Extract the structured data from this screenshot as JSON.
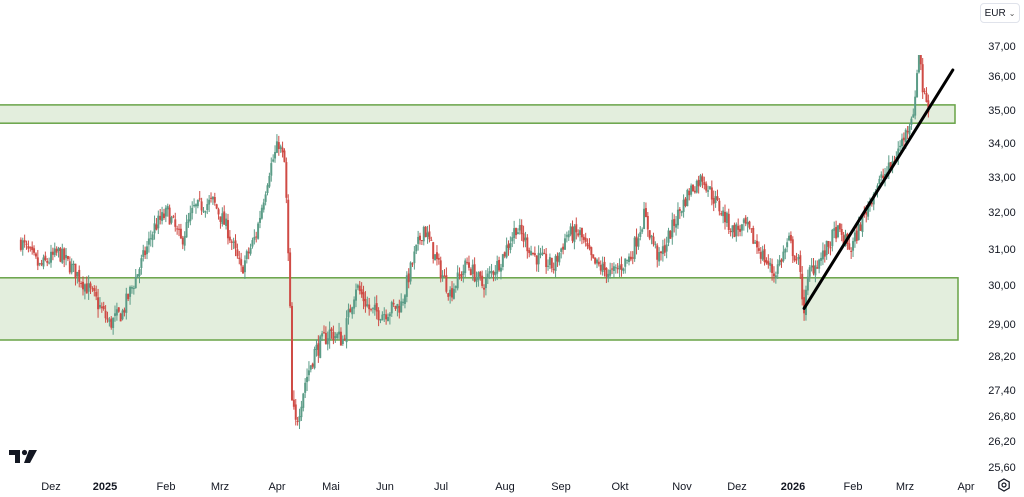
{
  "chart_data": {
    "type": "candlestick",
    "currency": "EUR",
    "y_ticks": [
      "37,00",
      "36,00",
      "35,00",
      "34,00",
      "33,00",
      "32,00",
      "31,00",
      "30,00",
      "29,00",
      "28,20",
      "27,40",
      "26,80",
      "26,20",
      "25,60"
    ],
    "x_ticks": [
      {
        "label": "Dez",
        "bold": false
      },
      {
        "label": "2025",
        "bold": true
      },
      {
        "label": "Feb",
        "bold": false
      },
      {
        "label": "Mrz",
        "bold": false
      },
      {
        "label": "Apr",
        "bold": false
      },
      {
        "label": "Mai",
        "bold": false
      },
      {
        "label": "Jun",
        "bold": false
      },
      {
        "label": "Jul",
        "bold": false
      },
      {
        "label": "Aug",
        "bold": false
      },
      {
        "label": "Sep",
        "bold": false
      },
      {
        "label": "Okt",
        "bold": false
      },
      {
        "label": "Nov",
        "bold": false
      },
      {
        "label": "Dez",
        "bold": false
      },
      {
        "label": "2026",
        "bold": true
      },
      {
        "label": "Feb",
        "bold": false
      },
      {
        "label": "Mrz",
        "bold": false
      },
      {
        "label": "Apr",
        "bold": false
      }
    ],
    "price_path": [
      [
        "2024-11-15",
        31.2
      ],
      [
        "2024-11-25",
        30.5
      ],
      [
        "2024-12-05",
        30.9
      ],
      [
        "2024-12-15",
        30.3
      ],
      [
        "2024-12-25",
        29.6
      ],
      [
        "2025-01-01",
        29.0
      ],
      [
        "2025-01-08",
        29.3
      ],
      [
        "2025-01-15",
        30.2
      ],
      [
        "2025-01-25",
        31.6
      ],
      [
        "2025-02-01",
        32.0
      ],
      [
        "2025-02-08",
        31.2
      ],
      [
        "2025-02-15",
        32.1
      ],
      [
        "2025-02-25",
        32.3
      ],
      [
        "2025-03-05",
        31.5
      ],
      [
        "2025-03-12",
        30.4
      ],
      [
        "2025-03-20",
        31.4
      ],
      [
        "2025-03-27",
        33.2
      ],
      [
        "2025-04-01",
        34.0
      ],
      [
        "2025-04-04",
        33.4
      ],
      [
        "2025-04-05",
        32.3
      ],
      [
        "2025-04-07",
        29.3
      ],
      [
        "2025-04-08",
        27.1
      ],
      [
        "2025-04-10",
        26.6
      ],
      [
        "2025-04-15",
        27.6
      ],
      [
        "2025-04-20",
        28.3
      ],
      [
        "2025-04-28",
        28.8
      ],
      [
        "2025-05-05",
        28.6
      ],
      [
        "2025-05-12",
        30.0
      ],
      [
        "2025-05-20",
        29.3
      ],
      [
        "2025-05-27",
        29.3
      ],
      [
        "2025-06-05",
        29.5
      ],
      [
        "2025-06-12",
        30.8
      ],
      [
        "2025-06-17",
        31.6
      ],
      [
        "2025-06-25",
        30.5
      ],
      [
        "2025-07-01",
        29.8
      ],
      [
        "2025-07-10",
        30.6
      ],
      [
        "2025-07-18",
        30.0
      ],
      [
        "2025-07-28",
        30.7
      ],
      [
        "2025-08-05",
        31.6
      ],
      [
        "2025-08-15",
        30.8
      ],
      [
        "2025-08-25",
        30.5
      ],
      [
        "2025-09-01",
        31.4
      ],
      [
        "2025-09-08",
        31.4
      ],
      [
        "2025-09-15",
        30.6
      ],
      [
        "2025-09-25",
        30.3
      ],
      [
        "2025-10-05",
        30.8
      ],
      [
        "2025-10-12",
        31.9
      ],
      [
        "2025-10-20",
        30.7
      ],
      [
        "2025-10-28",
        31.7
      ],
      [
        "2025-11-05",
        32.6
      ],
      [
        "2025-11-12",
        33.0
      ],
      [
        "2025-11-20",
        32.2
      ],
      [
        "2025-11-28",
        31.5
      ],
      [
        "2025-12-05",
        31.6
      ],
      [
        "2025-12-12",
        31.0
      ],
      [
        "2025-12-20",
        30.3
      ],
      [
        "2025-12-28",
        31.2
      ],
      [
        "2026-01-02",
        30.6
      ],
      [
        "2026-01-05",
        29.4
      ],
      [
        "2026-01-08",
        30.4
      ],
      [
        "2026-01-15",
        30.8
      ],
      [
        "2026-01-22",
        31.5
      ],
      [
        "2026-01-30",
        31.0
      ],
      [
        "2026-02-05",
        31.8
      ],
      [
        "2026-02-12",
        32.7
      ],
      [
        "2026-02-20",
        33.3
      ],
      [
        "2026-02-28",
        34.3
      ],
      [
        "2026-03-05",
        35.2
      ],
      [
        "2026-03-07",
        37.3
      ],
      [
        "2026-03-09",
        35.6
      ],
      [
        "2026-03-12",
        35.1
      ]
    ],
    "support_zone": {
      "low": 28.6,
      "high": 30.2
    },
    "resistance_zone": {
      "low": 34.6,
      "high": 35.15
    },
    "trendline": {
      "start": [
        "2026-01-05",
        29.4
      ],
      "end": [
        "2026-03-25",
        36.2
      ]
    },
    "y_scale": "log",
    "x_range": [
      "2024-11-15",
      "2026-04-08"
    ],
    "y_range": [
      25.6,
      37.0
    ],
    "up_color": "#5b9c87",
    "down_color": "#cf4b45",
    "zone_fill": "#e3eedd",
    "zone_border": "#68a347",
    "grid": false
  }
}
